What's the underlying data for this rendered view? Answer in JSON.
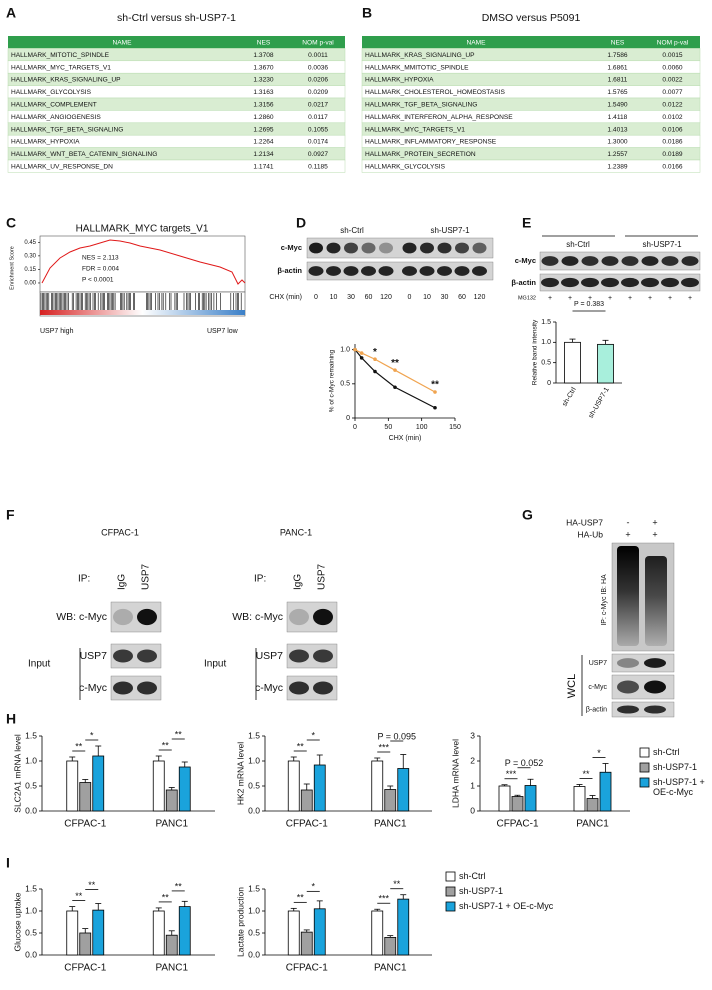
{
  "panels": {
    "A": {
      "label": "A",
      "title": "sh-Ctrl versus sh-USP7-1",
      "table": {
        "columns": [
          "NAME",
          "NES",
          "NOM p-val"
        ],
        "rows": [
          [
            "HALLMARK_MITOTIC_SPINDLE",
            "1.3708",
            "0.0011"
          ],
          [
            "HALLMARK_MYC_TARGETS_V1",
            "1.3670",
            "0.0036"
          ],
          [
            "HALLMARK_KRAS_SIGNALING_UP",
            "1.3230",
            "0.0206"
          ],
          [
            "HALLMARK_GLYCOLYSIS",
            "1.3163",
            "0.0209"
          ],
          [
            "HALLMARK_COMPLEMENT",
            "1.3156",
            "0.0217"
          ],
          [
            "HALLMARK_ANGIOGENESIS",
            "1.2860",
            "0.0117"
          ],
          [
            "HALLMARK_TGF_BETA_SIGNALING",
            "1.2695",
            "0.1055"
          ],
          [
            "HALLMARK_HYPOXIA",
            "1.2264",
            "0.0174"
          ],
          [
            "HALLMARK_WNT_BETA_CATENIN_SIGNALING",
            "1.2134",
            "0.0927"
          ],
          [
            "HALLMARK_UV_RESPONSE_DN",
            "1.1741",
            "0.1185"
          ]
        ]
      }
    },
    "B": {
      "label": "B",
      "title": "DMSO versus P5091",
      "table": {
        "columns": [
          "NAME",
          "NES",
          "NOM p-val"
        ],
        "rows": [
          [
            "HALLMARK_KRAS_SIGNALING_UP",
            "1.7586",
            "0.0015"
          ],
          [
            "HALLMARK_MMITOTIC_SPINDLE",
            "1.6861",
            "0.0060"
          ],
          [
            "HALLMARK_HYPOXIA",
            "1.6811",
            "0.0022"
          ],
          [
            "HALLMARK_CHOLESTEROL_HOMEOSTASIS",
            "1.5765",
            "0.0077"
          ],
          [
            "HALLMARK_TGF_BETA_SIGNALING",
            "1.5490",
            "0.0122"
          ],
          [
            "HALLMARK_INTERFERON_ALPHA_RESPONSE",
            "1.4118",
            "0.0102"
          ],
          [
            "HALLMARK_MYC_TARGETS_V1",
            "1.4013",
            "0.0106"
          ],
          [
            "HALLMARK_INFLAMMATORY_RESPONSE",
            "1.3000",
            "0.0186"
          ],
          [
            "HALLMARK_PROTEIN_SECRETION",
            "1.2557",
            "0.0189"
          ],
          [
            "HALLMARK_GLYCOLYSIS",
            "1.2389",
            "0.0166"
          ]
        ]
      }
    },
    "C": {
      "label": "C",
      "chart": {
        "type": "enrichment",
        "title": "HALLMARK_MYC targets_V1",
        "ylabel": "Enrichment Score",
        "ylim": [
          -0.1,
          0.52
        ],
        "yticks": [
          {
            "value": 0.45,
            "label": "0.45"
          },
          {
            "value": 0.3,
            "label": "0.30"
          },
          {
            "value": 0.15,
            "label": "0.15"
          },
          {
            "value": 0,
            "label": "0.00"
          }
        ],
        "stats": [
          "NES = 2.113",
          "FDR = 0.004",
          "P < 0.0001"
        ],
        "left_label": "USP7 high",
        "right_label": "USP7 low"
      }
    },
    "D": {
      "label": "D",
      "blot": {
        "groups": [
          "sh-Ctrl",
          "sh-USP7-1"
        ],
        "rows": [
          "c-Myc",
          "β-actin"
        ],
        "treatment": "CHX (min)",
        "lanes": [
          "0",
          "10",
          "30",
          "60",
          "120",
          "0",
          "10",
          "30",
          "60",
          "120"
        ]
      },
      "chart": {
        "type": "line",
        "xlabel": "CHX (min)",
        "ylabel": "% of c-Myc remaining",
        "x": [
          0,
          10,
          30,
          60,
          120
        ],
        "xlim": [
          0,
          150
        ],
        "xticks": [
          0,
          50,
          100,
          150
        ],
        "ylim": [
          0,
          1.2
        ],
        "yticks": [
          0,
          0.5,
          {
            "value": 1,
            "label": "1.0"
          }
        ],
        "series": [
          {
            "color": "#111111",
            "values": [
              1.0,
              0.88,
              0.68,
              0.45,
              0.15
            ]
          },
          {
            "color": "#f0a450",
            "values": [
              1.0,
              0.95,
              0.86,
              0.7,
              0.38
            ]
          }
        ],
        "annotations": [
          "*",
          "**",
          "**"
        ]
      }
    },
    "E": {
      "label": "E",
      "blot": {
        "groups": [
          "sh-Ctrl",
          "sh-USP7-1"
        ],
        "rows": [
          "c-Myc",
          "β-actin"
        ],
        "treatment": "MG132",
        "lanes": [
          "+",
          "+",
          "+",
          "+",
          "+",
          "+",
          "+",
          "+"
        ]
      },
      "chart": {
        "type": "bar",
        "ylabel": "Relative band intensity",
        "categories": [
          "sh-Ctrl",
          "sh-USP7-1"
        ],
        "values": [
          1.0,
          0.95
        ],
        "errors": [
          0.08,
          0.1
        ],
        "colors": [
          "#ffffff",
          "#a8efdc"
        ],
        "ylim": [
          0,
          1.5
        ],
        "yticks": [
          0,
          0.5,
          {
            "value": 1,
            "label": "1.0"
          },
          1.5
        ],
        "annotation": "P = 0.383"
      }
    },
    "F": {
      "label": "F",
      "blots": [
        {
          "cell": "CFPAC-1",
          "ip": "IP:",
          "lanes": [
            "IgG",
            "USP7"
          ],
          "wb": "WB: c-Myc",
          "input": "Input",
          "input_rows": [
            "USP7",
            "c-Myc"
          ]
        },
        {
          "cell": "PANC-1",
          "ip": "IP:",
          "lanes": [
            "IgG",
            "USP7"
          ],
          "wb": "WB: c-Myc",
          "input": "Input",
          "input_rows": [
            "USP7",
            "c-Myc"
          ]
        }
      ]
    },
    "G": {
      "label": "G",
      "conditions": [
        {
          "name": "HA-USP7",
          "signs": [
            "-",
            "+"
          ]
        },
        {
          "name": "HA-Ub",
          "signs": [
            "+",
            "+"
          ]
        }
      ],
      "ip": "IP: c-Myc IB: HA",
      "wcl": "WCL",
      "rows": [
        "USP7",
        "c-Myc",
        "β-actin"
      ]
    },
    "H": {
      "label": "H",
      "legend": [
        "sh-Ctrl",
        "sh-USP7-1",
        "sh-USP7-1 + OE-c-Myc"
      ],
      "charts": [
        {
          "type": "bar",
          "ylabel": "SLC2A1 mRNA level",
          "categories": [
            "CFPAC-1",
            "PANC1"
          ],
          "ylim": [
            0,
            1.5
          ],
          "yticks": [
            {
              "value": 0,
              "label": "0.0"
            },
            0.5,
            {
              "value": 1,
              "label": "1.0"
            },
            1.5
          ],
          "series": [
            {
              "color": "#ffffff",
              "values": [
                1.0,
                1.0
              ],
              "errors": [
                0.08,
                0.1
              ]
            },
            {
              "color": "#a0a0a0",
              "values": [
                0.57,
                0.42
              ],
              "errors": [
                0.06,
                0.05
              ]
            },
            {
              "color": "#1aa3dc",
              "values": [
                1.1,
                0.88
              ],
              "errors": [
                0.2,
                0.1
              ]
            }
          ],
          "annotations": [
            "**",
            "*",
            "**",
            "**"
          ]
        },
        {
          "type": "bar",
          "ylabel": "HK2 mRNA level",
          "categories": [
            "CFPAC-1",
            "PANC1"
          ],
          "ylim": [
            0,
            1.5
          ],
          "yticks": [
            {
              "value": 0,
              "label": "0.0"
            },
            0.5,
            {
              "value": 1,
              "label": "1.0"
            },
            1.5
          ],
          "series": [
            {
              "color": "#ffffff",
              "values": [
                1.0,
                1.0
              ],
              "errors": [
                0.08,
                0.06
              ]
            },
            {
              "color": "#a0a0a0",
              "values": [
                0.42,
                0.43
              ],
              "errors": [
                0.12,
                0.07
              ]
            },
            {
              "color": "#1aa3dc",
              "values": [
                0.92,
                0.85
              ],
              "errors": [
                0.2,
                0.28
              ]
            }
          ],
          "annotations": [
            "**",
            "*",
            "***",
            "P = 0.095"
          ]
        },
        {
          "type": "bar",
          "ylabel": "LDHA mRNA level",
          "categories": [
            "CFPAC-1",
            "PANC1"
          ],
          "ylim": [
            0,
            3
          ],
          "yticks": [
            0,
            1,
            2,
            3
          ],
          "series": [
            {
              "color": "#ffffff",
              "values": [
                1.0,
                0.98
              ],
              "errors": [
                0.05,
                0.08
              ]
            },
            {
              "color": "#a0a0a0",
              "values": [
                0.58,
                0.5
              ],
              "errors": [
                0.05,
                0.12
              ]
            },
            {
              "color": "#1aa3dc",
              "values": [
                1.02,
                1.55
              ],
              "errors": [
                0.25,
                0.35
              ]
            }
          ],
          "annotations": [
            "***",
            "P = 0.052",
            "**",
            "*"
          ]
        }
      ]
    },
    "I": {
      "label": "I",
      "legend": [
        "sh-Ctrl",
        "sh-USP7-1",
        "sh-USP7-1 + OE-c-Myc"
      ],
      "charts": [
        {
          "type": "bar",
          "ylabel": "Glucose uptake",
          "categories": [
            "CFPAC-1",
            "PANC1"
          ],
          "ylim": [
            0,
            1.5
          ],
          "yticks": [
            {
              "value": 0,
              "label": "0.0"
            },
            0.5,
            {
              "value": 1,
              "label": "1.0"
            },
            1.5
          ],
          "series": [
            {
              "color": "#ffffff",
              "values": [
                1.0,
                1.0
              ],
              "errors": [
                0.1,
                0.07
              ]
            },
            {
              "color": "#a0a0a0",
              "values": [
                0.5,
                0.45
              ],
              "errors": [
                0.1,
                0.1
              ]
            },
            {
              "color": "#1aa3dc",
              "values": [
                1.02,
                1.1
              ],
              "errors": [
                0.15,
                0.12
              ]
            }
          ],
          "annotations": [
            "**",
            "**",
            "**",
            "**"
          ]
        },
        {
          "type": "bar",
          "ylabel": "Lactate production",
          "categories": [
            "CFPAC-1",
            "PANC1"
          ],
          "ylim": [
            0,
            1.5
          ],
          "yticks": [
            {
              "value": 0,
              "label": "0.0"
            },
            0.5,
            {
              "value": 1,
              "label": "1.0"
            },
            1.5
          ],
          "series": [
            {
              "color": "#ffffff",
              "values": [
                1.0,
                1.0
              ],
              "errors": [
                0.06,
                0.04
              ]
            },
            {
              "color": "#a0a0a0",
              "values": [
                0.52,
                0.4
              ],
              "errors": [
                0.05,
                0.04
              ]
            },
            {
              "color": "#1aa3dc",
              "values": [
                1.05,
                1.27
              ],
              "errors": [
                0.18,
                0.1
              ]
            }
          ],
          "annotations": [
            "**",
            "*",
            "***",
            "**"
          ]
        }
      ]
    }
  }
}
